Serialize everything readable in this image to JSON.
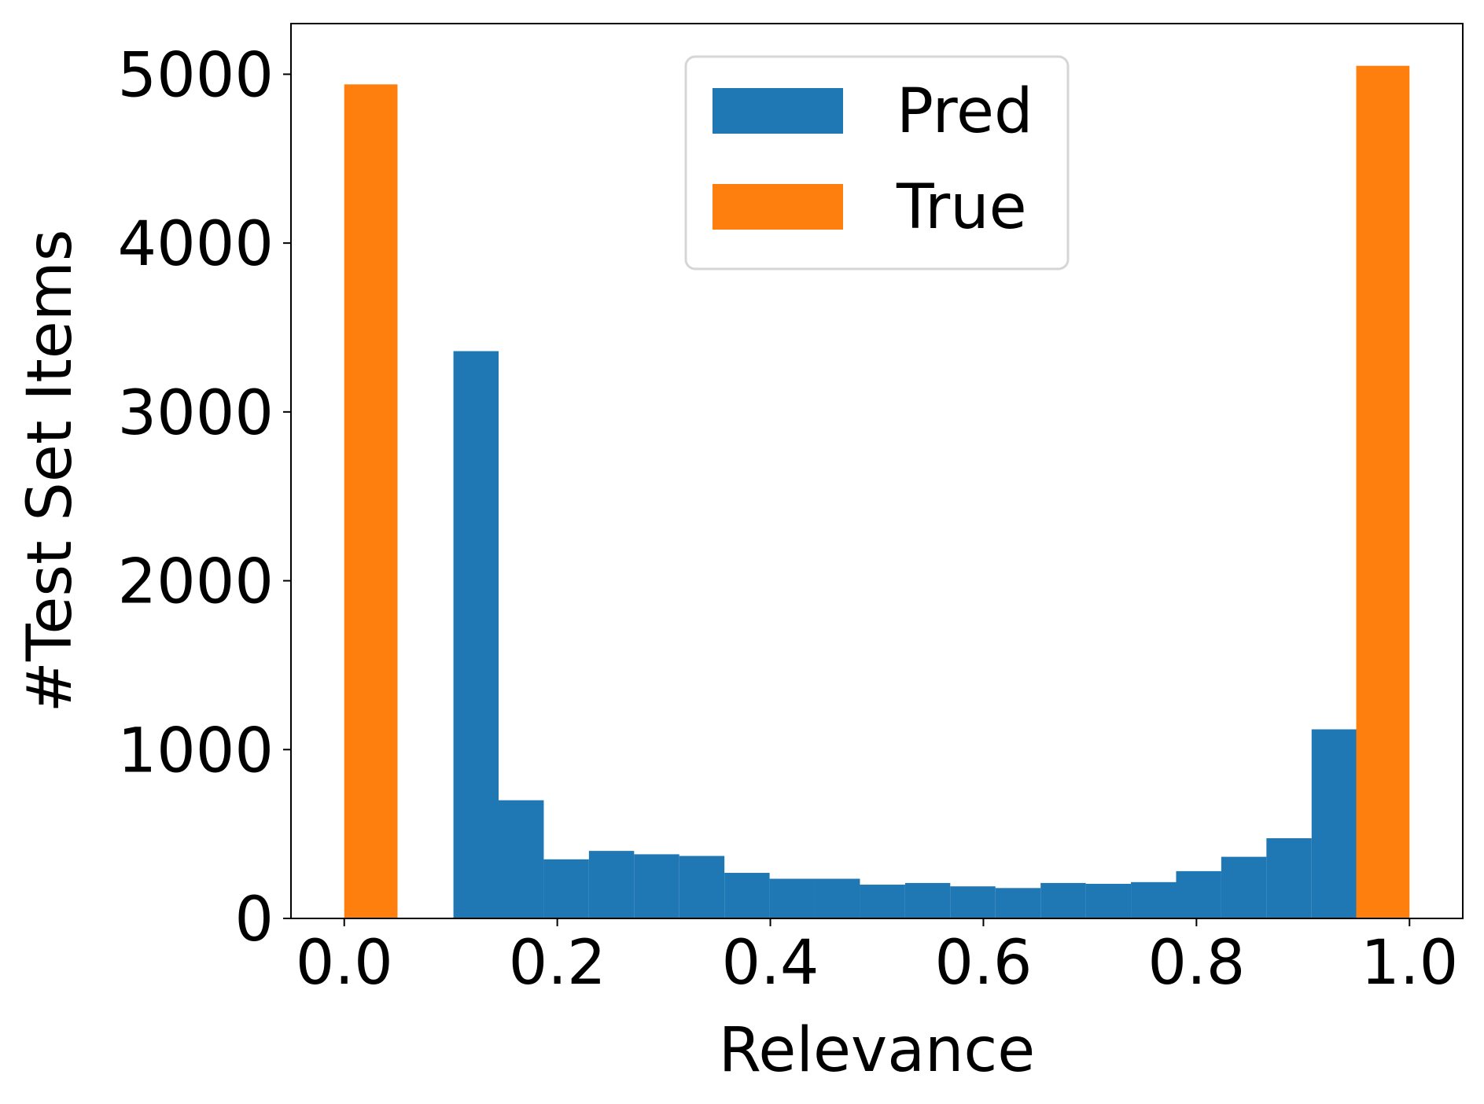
{
  "chart_data": {
    "type": "bar",
    "xlabel": "Relevance",
    "ylabel": "#Test Set Items",
    "xlim": [
      -0.05,
      1.05
    ],
    "ylim": [
      0,
      5300
    ],
    "xticks": [
      0.0,
      0.2,
      0.4,
      0.6,
      0.8,
      1.0
    ],
    "xtick_labels": [
      "0.0",
      "0.2",
      "0.4",
      "0.6",
      "0.8",
      "1.0"
    ],
    "yticks": [
      0,
      1000,
      2000,
      3000,
      4000,
      5000
    ],
    "ytick_labels": [
      "0",
      "1000",
      "2000",
      "3000",
      "4000",
      "5000"
    ],
    "grid": false,
    "legend_position": "top-center",
    "series": [
      {
        "name": "Pred",
        "color": "#1f77b4",
        "bins": [
          {
            "x0": 0.1025,
            "x1": 0.1449,
            "value": 3360
          },
          {
            "x0": 0.1449,
            "x1": 0.1873,
            "value": 700
          },
          {
            "x0": 0.1873,
            "x1": 0.2297,
            "value": 350
          },
          {
            "x0": 0.2297,
            "x1": 0.2721,
            "value": 400
          },
          {
            "x0": 0.2721,
            "x1": 0.3145,
            "value": 380
          },
          {
            "x0": 0.3145,
            "x1": 0.3569,
            "value": 370
          },
          {
            "x0": 0.3569,
            "x1": 0.3993,
            "value": 270
          },
          {
            "x0": 0.3993,
            "x1": 0.4417,
            "value": 235
          },
          {
            "x0": 0.4417,
            "x1": 0.4841,
            "value": 235
          },
          {
            "x0": 0.4841,
            "x1": 0.5265,
            "value": 200
          },
          {
            "x0": 0.5265,
            "x1": 0.5689,
            "value": 210
          },
          {
            "x0": 0.5689,
            "x1": 0.6113,
            "value": 190
          },
          {
            "x0": 0.6113,
            "x1": 0.6537,
            "value": 180
          },
          {
            "x0": 0.6537,
            "x1": 0.6961,
            "value": 210
          },
          {
            "x0": 0.6961,
            "x1": 0.7385,
            "value": 205
          },
          {
            "x0": 0.7385,
            "x1": 0.7809,
            "value": 215
          },
          {
            "x0": 0.7809,
            "x1": 0.8233,
            "value": 280
          },
          {
            "x0": 0.8233,
            "x1": 0.8657,
            "value": 365
          },
          {
            "x0": 0.8657,
            "x1": 0.9081,
            "value": 475
          },
          {
            "x0": 0.9081,
            "x1": 0.9505,
            "value": 1120
          }
        ]
      },
      {
        "name": "True",
        "color": "#ff7f0e",
        "bins": [
          {
            "x0": 0.0,
            "x1": 0.05,
            "value": 4940
          },
          {
            "x0": 0.95,
            "x1": 1.0,
            "value": 5050
          }
        ]
      }
    ]
  }
}
